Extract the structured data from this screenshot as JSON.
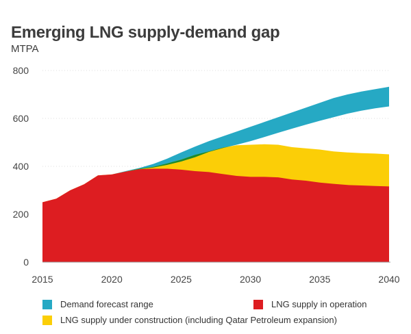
{
  "chart_data": {
    "type": "area",
    "title": "Emerging LNG supply-demand gap",
    "subtitle": "MTPA",
    "xlabel": "",
    "ylabel": "",
    "xlim": [
      2015,
      2040
    ],
    "ylim": [
      0,
      800
    ],
    "x_ticks": [
      2015,
      2020,
      2025,
      2030,
      2035,
      2040
    ],
    "y_ticks": [
      0,
      200,
      400,
      600,
      800
    ],
    "grid": "horizontal",
    "legend_position": "bottom",
    "x": [
      2015,
      2016,
      2017,
      2018,
      2019,
      2020,
      2021,
      2022,
      2023,
      2024,
      2025,
      2026,
      2027,
      2028,
      2029,
      2030,
      2031,
      2032,
      2033,
      2034,
      2035,
      2036,
      2037,
      2038,
      2039,
      2040
    ],
    "series": [
      {
        "key": "operation",
        "name": "LNG supply in operation",
        "color": "#dd1d21",
        "values": [
          250,
          265,
          300,
          325,
          362,
          366,
          378,
          388,
          390,
          390,
          386,
          380,
          376,
          368,
          360,
          356,
          356,
          354,
          345,
          340,
          332,
          327,
          322,
          320,
          318,
          316
        ]
      },
      {
        "key": "construction",
        "name": "LNG supply under construction (including Qatar Petroleum expansion)",
        "color": "#fbce07",
        "values": [
          250,
          265,
          300,
          325,
          362,
          366,
          378,
          390,
          398,
          412,
          428,
          448,
          462,
          478,
          488,
          490,
          492,
          490,
          480,
          475,
          470,
          462,
          458,
          455,
          453,
          450
        ]
      },
      {
        "key": "demand",
        "name": "Demand forecast range",
        "color": "#26a9c4",
        "low": [
          250,
          265,
          300,
          325,
          362,
          366,
          378,
          388,
          395,
          406,
          420,
          438,
          460,
          476,
          490,
          505,
          522,
          540,
          557,
          574,
          590,
          605,
          620,
          632,
          642,
          650
        ],
        "high": [
          250,
          265,
          300,
          325,
          362,
          366,
          380,
          393,
          410,
          432,
          458,
          482,
          505,
          525,
          545,
          565,
          585,
          605,
          625,
          645,
          665,
          685,
          700,
          712,
          722,
          732
        ]
      }
    ],
    "overlap_color": "#1a8a2e"
  },
  "legend": [
    {
      "label": "Demand forecast range",
      "color": "#26a9c4"
    },
    {
      "label": "LNG supply in operation",
      "color": "#dd1d21"
    },
    {
      "label": "LNG supply under construction (including Qatar Petroleum expansion)",
      "color": "#fbce07"
    }
  ]
}
